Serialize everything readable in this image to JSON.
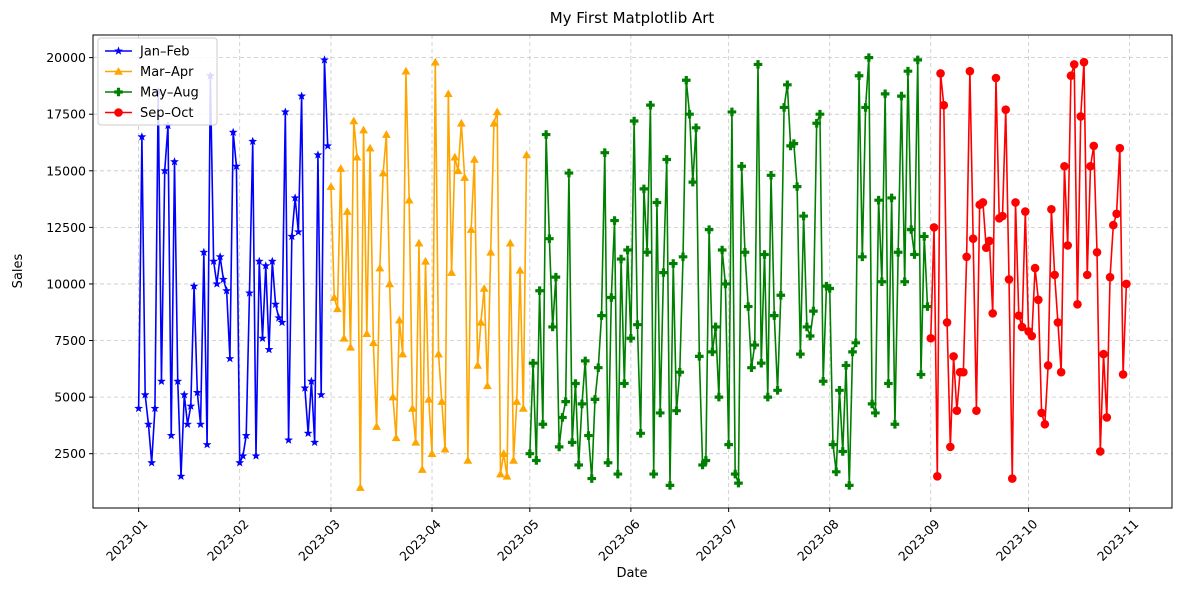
{
  "chart_data": {
    "type": "line",
    "title": "My First Matplotlib Art",
    "xlabel": "Date",
    "ylabel": "Sales",
    "x_tick_labels": [
      "2023-01",
      "2023-02",
      "2023-03",
      "2023-04",
      "2023-05",
      "2023-06",
      "2023-07",
      "2023-08",
      "2023-09",
      "2023-10",
      "2023-11"
    ],
    "x_tick_dates": [
      "2023-01-01",
      "2023-02-01",
      "2023-03-01",
      "2023-04-01",
      "2023-05-01",
      "2023-06-01",
      "2023-07-01",
      "2023-08-01",
      "2023-09-01",
      "2023-10-01",
      "2023-11-01"
    ],
    "y_ticks": [
      2500,
      5000,
      7500,
      10000,
      12500,
      15000,
      17500,
      20000
    ],
    "y_tick_labels": [
      "2500",
      "5000",
      "7500",
      "10000",
      "12500",
      "15000",
      "17500",
      "20000"
    ],
    "xlim": [
      "2022-12-18",
      "2023-11-14"
    ],
    "ylim": [
      100,
      21000
    ],
    "grid": true,
    "grid_style": "dashed",
    "legend_placement": "top-left",
    "series": [
      {
        "name": "Jan–Feb",
        "color": "#0000ff",
        "marker": "star",
        "x_start": "2023-01-01",
        "values": [
          4500,
          16500,
          5100,
          3800,
          2100,
          4500,
          18500,
          5700,
          15000,
          17000,
          3300,
          15400,
          5700,
          1500,
          5100,
          3800,
          4600,
          9900,
          5200,
          3800,
          11400,
          2900,
          19200,
          11000,
          10000,
          11200,
          10200,
          9700,
          6700,
          16700,
          15200,
          2100,
          2400,
          3300,
          9600,
          16300,
          2400,
          11000,
          7600,
          10800,
          7100,
          11000,
          9100,
          8500,
          8300,
          17600,
          3100,
          12100,
          13800,
          12300,
          18300,
          5400,
          3400,
          5700,
          3000,
          15700,
          5100,
          19900,
          16100
        ]
      },
      {
        "name": "Mar–Apr",
        "color": "#ffa500",
        "marker": "triangle",
        "x_start": "2023-03-01",
        "values": [
          14300,
          9400,
          8900,
          15100,
          7600,
          13200,
          7200,
          17200,
          15600,
          1000,
          16800,
          7800,
          16000,
          7400,
          3700,
          10700,
          14900,
          16600,
          10000,
          5000,
          3200,
          8400,
          6900,
          19400,
          13700,
          4500,
          3000,
          11800,
          1800,
          11000,
          4900,
          2500,
          19800,
          6900,
          4800,
          2700,
          18400,
          10500,
          15600,
          15000,
          17100,
          14700,
          2200,
          12400,
          15500,
          6400,
          8300,
          9800,
          5500,
          11400,
          17100,
          17600,
          1600,
          2500,
          1500,
          11800,
          2200,
          4800,
          10600,
          4500,
          15700
        ]
      },
      {
        "name": "May–Aug",
        "color": "#008000",
        "marker": "plus",
        "x_start": "2023-05-01",
        "values": [
          2500,
          6500,
          2200,
          9700,
          3800,
          16600,
          12000,
          8100,
          10300,
          2800,
          4100,
          4800,
          14900,
          3000,
          5600,
          2000,
          4700,
          6600,
          3300,
          1400,
          4900,
          6300,
          8600,
          15800,
          2100,
          9400,
          12800,
          1600,
          11100,
          5600,
          11500,
          7600,
          17200,
          8200,
          3400,
          14200,
          11400,
          17900,
          1600,
          13600,
          4300,
          10500,
          15500,
          1100,
          10900,
          4400,
          6100,
          11200,
          19000,
          17500,
          14500,
          16900,
          6800,
          2000,
          2200,
          12400,
          7000,
          8100,
          5000,
          11500,
          10000,
          2900,
          17600,
          1600,
          1200,
          15200,
          11400,
          9000,
          6300,
          7300,
          19700,
          6500,
          11300,
          5000,
          14800,
          8600,
          5300,
          9500,
          17800,
          18800,
          16100,
          16200,
          14300,
          6900,
          13000,
          8100,
          7700,
          8800,
          17100,
          17500,
          5700,
          9900,
          9800,
          2900,
          1700,
          5300,
          2600,
          6400,
          1100,
          7000,
          7400,
          19200,
          11200,
          17800,
          20000,
          4700,
          4300,
          13700,
          10100,
          18400,
          5600,
          13800,
          3800,
          11400,
          18300,
          10100,
          19400,
          12400,
          11300,
          19900,
          6000,
          12100,
          9000
        ]
      },
      {
        "name": "Sep–Oct",
        "color": "#ff0000",
        "marker": "circle",
        "x_start": "2023-09-01",
        "values": [
          7600,
          12500,
          1500,
          19300,
          17900,
          8300,
          2800,
          6800,
          4400,
          6100,
          6100,
          11200,
          19400,
          12000,
          4400,
          13500,
          13600,
          11600,
          11900,
          8700,
          19100,
          12900,
          13000,
          17700,
          10200,
          1400,
          13600,
          8600,
          8100,
          13200,
          7900,
          7700,
          10700,
          9300,
          4300,
          3800,
          6400,
          13300,
          10400,
          8300,
          6100,
          15200,
          11700,
          19200,
          19700,
          9100,
          17400,
          19800,
          10400,
          15200,
          16100,
          11400,
          2600,
          6900,
          4100,
          10300,
          12600,
          13100,
          16000,
          6000,
          10000
        ]
      }
    ]
  }
}
